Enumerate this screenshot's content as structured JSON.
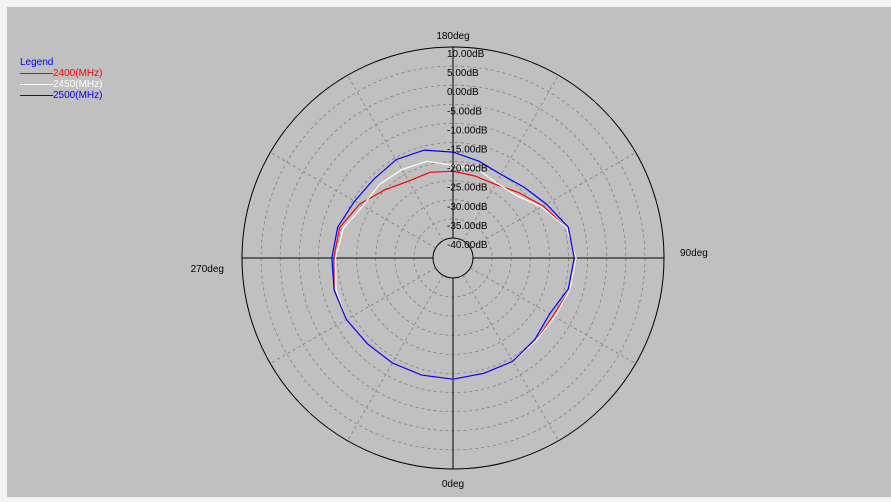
{
  "chart_data": {
    "type": "polar-line",
    "angle_labels": [
      {
        "angle": 180,
        "label": "180deg"
      },
      {
        "angle": 90,
        "label": "90deg"
      },
      {
        "angle": 0,
        "label": "0deg"
      },
      {
        "angle": 270,
        "label": "270deg"
      }
    ],
    "radial_labels": [
      "10.00dB",
      "5.00dB",
      "0.00dB",
      "-5.00dB",
      "-10.00dB",
      "-15.00dB",
      "-20.00dB",
      "-25.00dB",
      "-30.00dB",
      "-35.00dB",
      "-40.00dB"
    ],
    "r_range_db": [
      -40,
      10
    ],
    "legend_title": "Legend",
    "series": [
      {
        "name": "2400(MHz)",
        "color": "#ff0000",
        "points": [
          [
            0,
            -13.5
          ],
          [
            15,
            -14
          ],
          [
            30,
            -14
          ],
          [
            45,
            -14.5
          ],
          [
            60,
            -15
          ],
          [
            75,
            -13.5
          ],
          [
            90,
            -13
          ],
          [
            105,
            -14.5
          ],
          [
            120,
            -18
          ],
          [
            135,
            -21
          ],
          [
            150,
            -23
          ],
          [
            165,
            -23
          ],
          [
            180,
            -22.5
          ],
          [
            195,
            -22
          ],
          [
            210,
            -22
          ],
          [
            225,
            -20
          ],
          [
            240,
            -17
          ],
          [
            255,
            -14.5
          ],
          [
            270,
            -14
          ],
          [
            285,
            -13
          ],
          [
            300,
            -13
          ],
          [
            315,
            -13.5
          ],
          [
            330,
            -13.5
          ],
          [
            345,
            -13.5
          ]
        ]
      },
      {
        "name": "2450(MHz)",
        "color": "#ffffff",
        "points": [
          [
            0,
            -13.5
          ],
          [
            15,
            -14
          ],
          [
            30,
            -14
          ],
          [
            45,
            -14.5
          ],
          [
            60,
            -14.5
          ],
          [
            75,
            -13.5
          ],
          [
            90,
            -13
          ],
          [
            105,
            -14.5
          ],
          [
            120,
            -18.5
          ],
          [
            135,
            -22
          ],
          [
            150,
            -22.5
          ],
          [
            165,
            -21
          ],
          [
            180,
            -21
          ],
          [
            195,
            -19
          ],
          [
            210,
            -18.5
          ],
          [
            225,
            -18
          ],
          [
            240,
            -18
          ],
          [
            255,
            -15.5
          ],
          [
            270,
            -14.5
          ],
          [
            285,
            -13.5
          ],
          [
            300,
            -13
          ],
          [
            315,
            -13.5
          ],
          [
            330,
            -13.5
          ],
          [
            345,
            -13.5
          ]
        ]
      },
      {
        "name": "2500(MHz)",
        "color": "#0000ff",
        "points": [
          [
            0,
            -13.5
          ],
          [
            15,
            -14
          ],
          [
            30,
            -14
          ],
          [
            45,
            -15
          ],
          [
            60,
            -16
          ],
          [
            75,
            -14
          ],
          [
            90,
            -13.5
          ],
          [
            105,
            -14
          ],
          [
            120,
            -17
          ],
          [
            135,
            -19
          ],
          [
            150,
            -20
          ],
          [
            165,
            -19
          ],
          [
            180,
            -17.5
          ],
          [
            195,
            -16
          ],
          [
            210,
            -15.5
          ],
          [
            225,
            -16
          ],
          [
            240,
            -15.5
          ],
          [
            255,
            -14
          ],
          [
            270,
            -13.5
          ],
          [
            285,
            -13
          ],
          [
            300,
            -13
          ],
          [
            315,
            -13.5
          ],
          [
            330,
            -13.5
          ],
          [
            345,
            -13.5
          ]
        ]
      }
    ]
  }
}
